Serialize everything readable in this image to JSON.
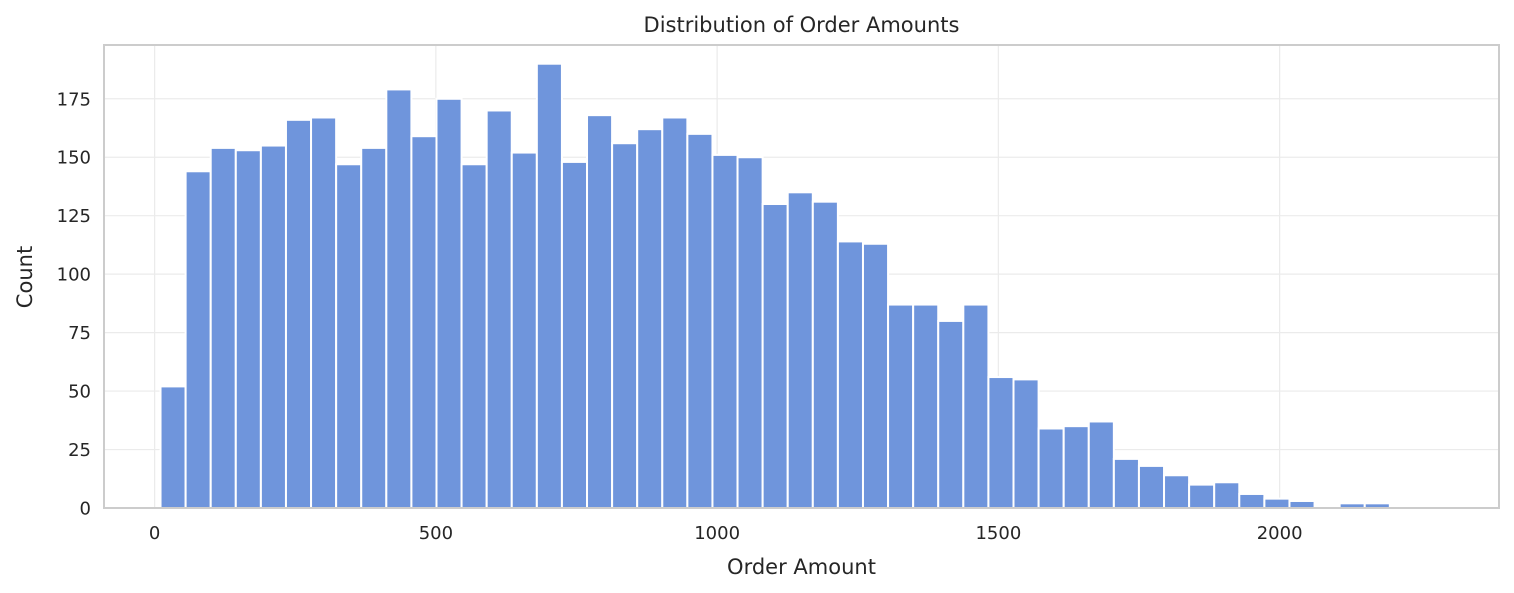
{
  "chart_data": {
    "type": "bar",
    "title": "Distribution of Order Amounts",
    "xlabel": "Order Amount",
    "ylabel": "Count",
    "xlim": [
      -90,
      2390
    ],
    "ylim": [
      0,
      198
    ],
    "xticks": [
      0,
      500,
      1000,
      1500,
      2000
    ],
    "yticks": [
      0,
      25,
      50,
      75,
      100,
      125,
      150,
      175
    ],
    "bin_start": 10.5,
    "bin_width": 44.6,
    "values": [
      52,
      144,
      154,
      153,
      155,
      166,
      167,
      147,
      154,
      179,
      159,
      175,
      147,
      170,
      152,
      190,
      148,
      168,
      156,
      162,
      167,
      160,
      151,
      150,
      130,
      135,
      131,
      114,
      113,
      87,
      87,
      80,
      87,
      56,
      55,
      34,
      35,
      37,
      21,
      18,
      14,
      10,
      11,
      6,
      4,
      3,
      0,
      2,
      2
    ],
    "grid": true,
    "colors": {
      "bar": "#6f95dc",
      "bar_edge": "#ffffff",
      "grid": "#ebebeb",
      "frame": "#cccccc",
      "text": "#262626"
    }
  }
}
